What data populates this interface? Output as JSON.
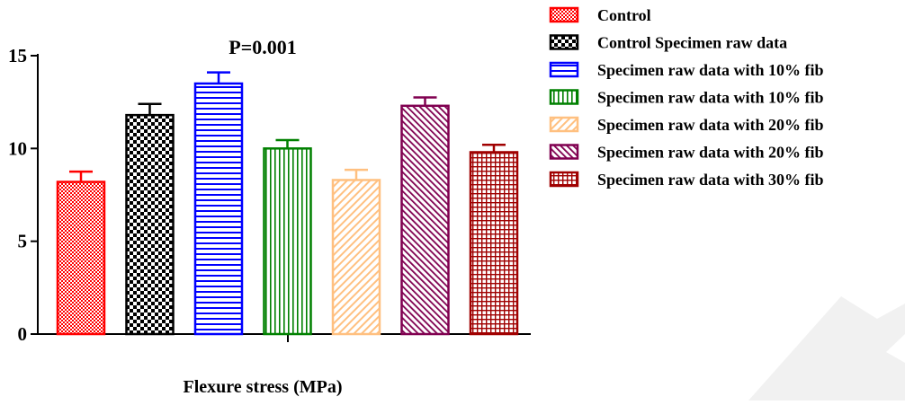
{
  "chart_data": {
    "type": "bar",
    "title": "",
    "xlabel": "Flexure stress (MPa)",
    "ylabel": "",
    "ylim": [
      0,
      15
    ],
    "yticks": [
      0,
      5,
      10,
      15
    ],
    "annotation": "P=0.001",
    "grid": false,
    "legend_position": "right",
    "categories": [
      "Control",
      "Control Specimen raw data",
      "Specimen raw data with 10% fib",
      "Specimen raw data with 10% fib",
      "Specimen raw data with 20% fib",
      "Specimen raw data with 20% fib",
      "Specimen raw data with 30% fib"
    ],
    "values": [
      8.2,
      11.8,
      13.5,
      10.0,
      8.3,
      12.3,
      9.8
    ],
    "errors": [
      0.55,
      0.6,
      0.6,
      0.45,
      0.55,
      0.45,
      0.4
    ],
    "colors": [
      "#ff0000",
      "#000000",
      "#0000ff",
      "#008000",
      "#ffc080",
      "#800050",
      "#a00000"
    ],
    "patterns": [
      "dots",
      "checker",
      "hlines",
      "vlines",
      "diag-light",
      "diag-dark",
      "grid"
    ],
    "legend": [
      "Control",
      "Control Specimen raw data",
      "Specimen raw data with 10% fib",
      "Specimen raw data with 10% fib",
      "Specimen raw data with 20% fib",
      "Specimen raw data with 20% fib",
      "Specimen raw data with 30% fib"
    ]
  }
}
